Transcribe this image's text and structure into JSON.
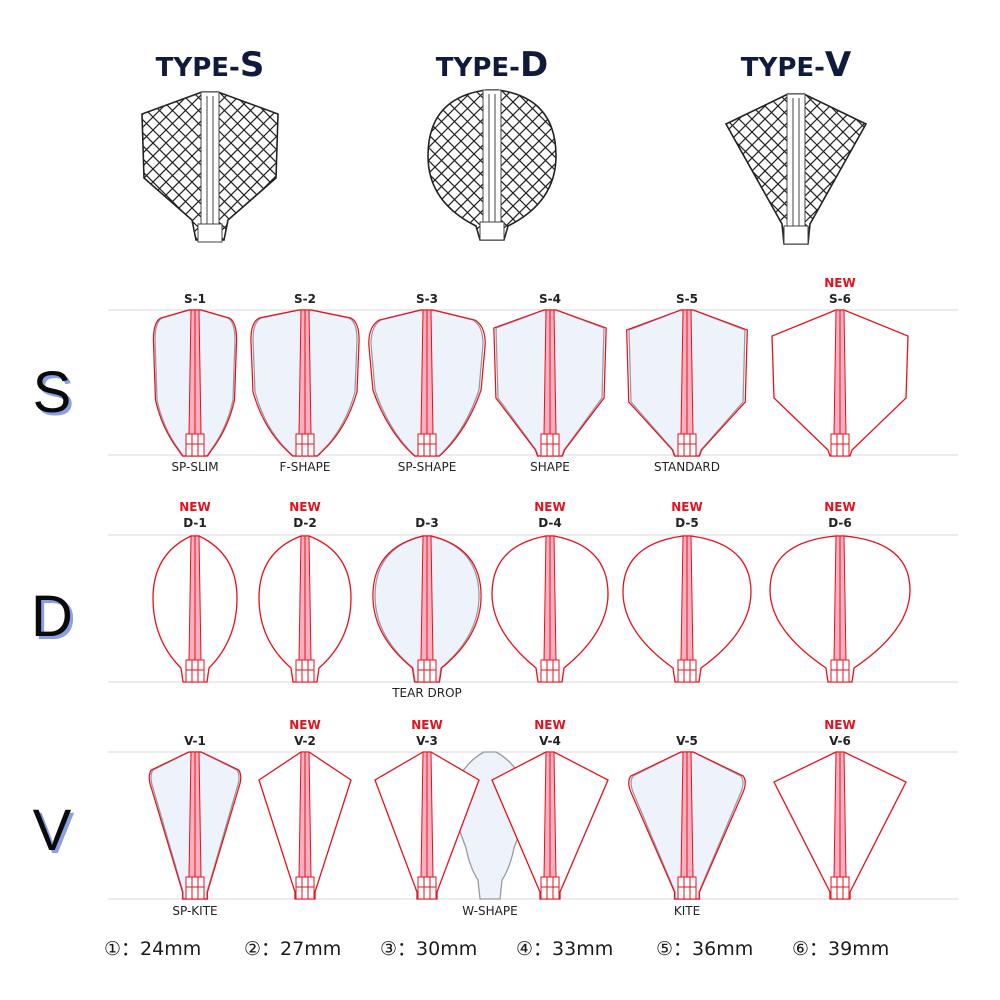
{
  "types": [
    {
      "id": "S",
      "prefix": "TYPE-",
      "letter": "S"
    },
    {
      "id": "D",
      "prefix": "TYPE-",
      "letter": "D"
    },
    {
      "id": "V",
      "prefix": "TYPE-",
      "letter": "V"
    }
  ],
  "rows": [
    {
      "letter": "S",
      "flights": [
        {
          "code": "S-1",
          "new": false,
          "name": "SP-SLIM",
          "shape": "slim",
          "ghost": true
        },
        {
          "code": "S-2",
          "new": false,
          "name": "F-SHAPE",
          "shape": "fshape",
          "ghost": true
        },
        {
          "code": "S-3",
          "new": false,
          "name": "SP-SHAPE",
          "shape": "spshape",
          "ghost": true
        },
        {
          "code": "S-4",
          "new": false,
          "name": "SHAPE",
          "shape": "shape",
          "ghost": true
        },
        {
          "code": "S-5",
          "new": false,
          "name": "STANDARD",
          "shape": "standard",
          "ghost": true
        },
        {
          "code": "S-6",
          "new": true,
          "name": "",
          "shape": "s6",
          "ghost": false
        }
      ]
    },
    {
      "letter": "D",
      "flights": [
        {
          "code": "D-1",
          "new": true,
          "name": "",
          "shape": "d1",
          "ghost": false
        },
        {
          "code": "D-2",
          "new": true,
          "name": "",
          "shape": "d2",
          "ghost": false
        },
        {
          "code": "D-3",
          "new": false,
          "name": "TEAR DROP",
          "shape": "d3",
          "ghost": true
        },
        {
          "code": "D-4",
          "new": true,
          "name": "",
          "shape": "d4",
          "ghost": false
        },
        {
          "code": "D-5",
          "new": true,
          "name": "",
          "shape": "d5",
          "ghost": false
        },
        {
          "code": "D-6",
          "new": true,
          "name": "",
          "shape": "d6",
          "ghost": false
        }
      ]
    },
    {
      "letter": "V",
      "flights": [
        {
          "code": "V-1",
          "new": false,
          "name": "SP-KITE",
          "shape": "v1",
          "ghost": true
        },
        {
          "code": "V-2",
          "new": true,
          "name": "",
          "shape": "v2",
          "ghost": false
        },
        {
          "code": "V-3",
          "new": true,
          "name": "",
          "shape": "v3",
          "ghost": false
        },
        {
          "code": "V-4",
          "new": true,
          "name": "",
          "shape": "v4",
          "ghost": false
        },
        {
          "code": "V-5",
          "new": false,
          "name": "KITE",
          "shape": "v5",
          "ghost": true
        },
        {
          "code": "V-6",
          "new": true,
          "name": "",
          "shape": "v6",
          "ghost": false
        }
      ],
      "extra": {
        "name": "W-SHAPE",
        "shape": "wshape"
      }
    }
  ],
  "new_label": "NEW",
  "sizes": [
    {
      "marker": "①",
      "value": "：24mm"
    },
    {
      "marker": "②",
      "value": "：27mm"
    },
    {
      "marker": "③",
      "value": "：30mm"
    },
    {
      "marker": "④",
      "value": "：33mm"
    },
    {
      "marker": "⑤",
      "value": "：36mm"
    },
    {
      "marker": "⑥",
      "value": "：39mm"
    }
  ],
  "colors": {
    "accent": "#e8101c",
    "shaft_fill": "#f7b0bf",
    "flight_fill": "#eef2fb",
    "navy": "#101a3a",
    "shadow_blue": "#8aa0e6"
  }
}
